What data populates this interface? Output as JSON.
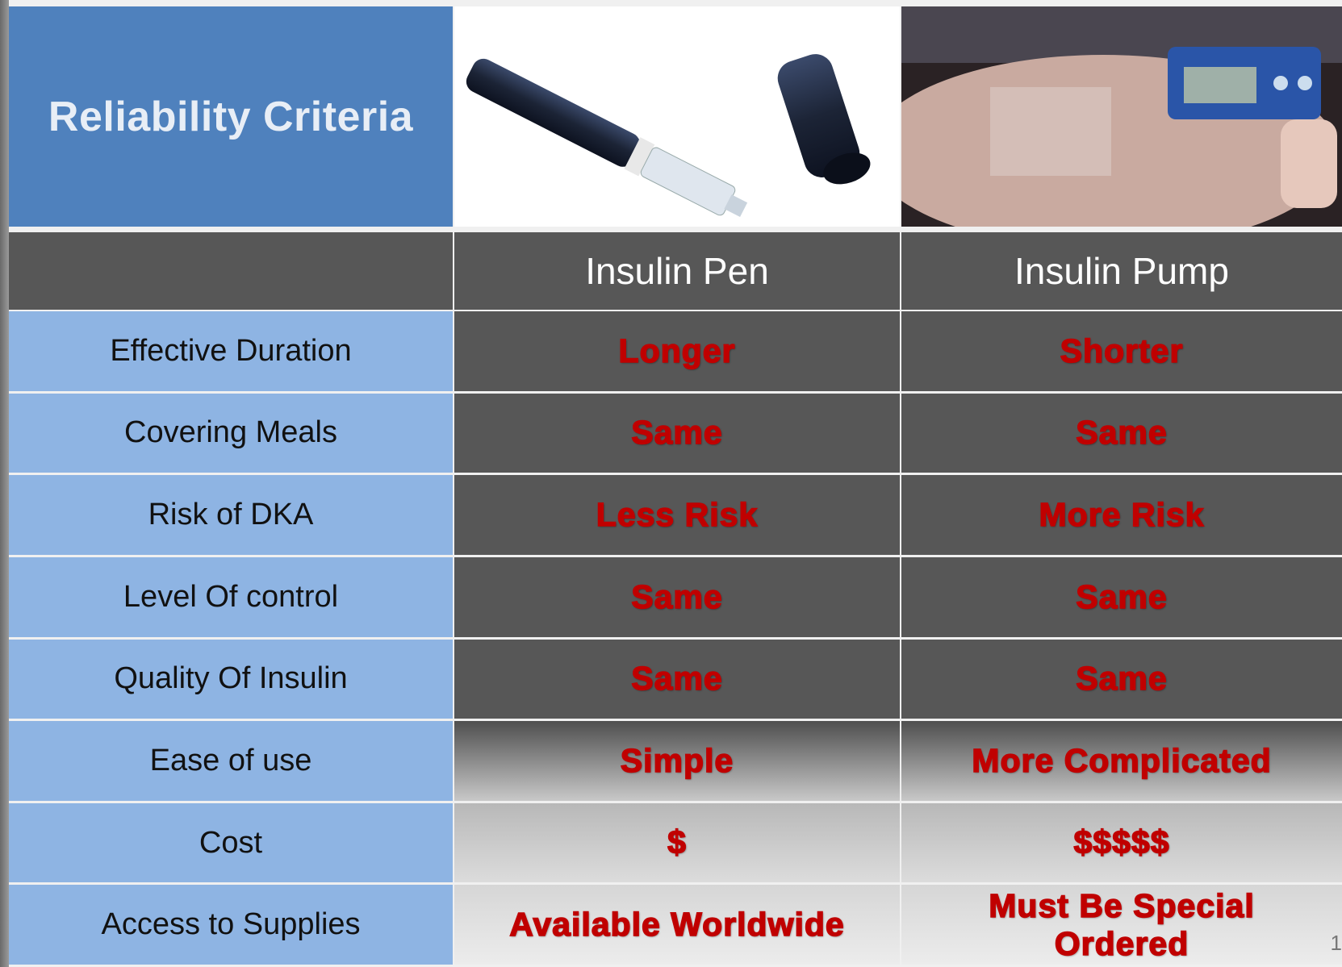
{
  "header": {
    "title": "Reliability Criteria"
  },
  "table": {
    "columns": [
      "Insulin Pen",
      "Insulin Pump"
    ],
    "rows": [
      [
        "Effective  Duration",
        "Longer",
        "Shorter"
      ],
      [
        "Covering  Meals",
        "Same",
        "Same"
      ],
      [
        "Risk of DKA",
        "Less Risk",
        "More Risk"
      ],
      [
        "Level  Of control",
        "Same",
        "Same"
      ],
      [
        "Quality  Of Insulin",
        "Same",
        "Same"
      ],
      [
        "Ease of use",
        "Simple",
        "More Complicated"
      ],
      [
        "Cost",
        "$",
        "$$$$$"
      ],
      [
        "Access to  Supplies",
        "Available Worldwide",
        "Must Be Special Ordered"
      ]
    ]
  },
  "page_number": "1"
}
